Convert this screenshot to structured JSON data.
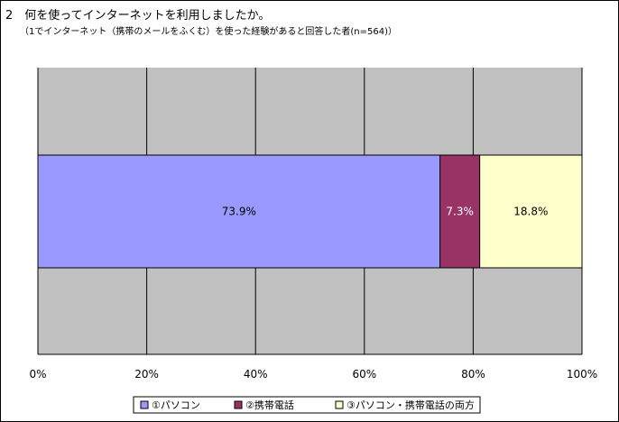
{
  "chart_data": {
    "type": "bar",
    "orientation": "horizontal",
    "stacked": true,
    "title": "2　何を使ってインターネットを利用しましたか。",
    "subtitle": "（1でインターネット（携帯のメールをふくむ）を使った経験があると回答した者(n=564)）",
    "xlim": [
      0,
      100
    ],
    "x_ticks": [
      "0%",
      "20%",
      "40%",
      "60%",
      "80%",
      "100%"
    ],
    "grid": true,
    "legend_position": "bottom",
    "series": [
      {
        "name": "①パソコン",
        "value": 73.9,
        "label": "73.9%",
        "color": "#9999ff"
      },
      {
        "name": "②携帯電話",
        "value": 7.3,
        "label": "7.3%",
        "color": "#993366"
      },
      {
        "name": "③パソコン・携帯電話の両方",
        "value": 18.8,
        "label": "18.8%",
        "color": "#ffffcc"
      }
    ],
    "plot_background": "#c0c0c0"
  }
}
